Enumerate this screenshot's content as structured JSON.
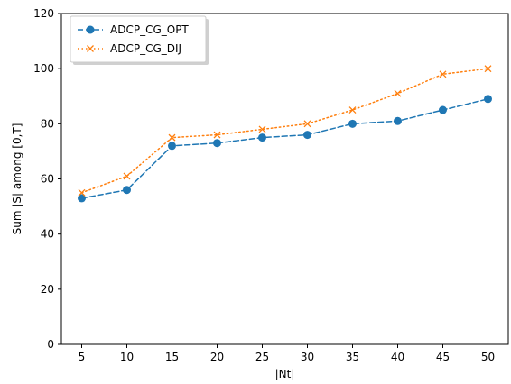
{
  "chart_data": {
    "type": "line",
    "xlabel": "|Nt|",
    "ylabel": "Sum |S| among [0,T]",
    "x": [
      5,
      10,
      15,
      20,
      25,
      30,
      35,
      40,
      45,
      50
    ],
    "xticks": [
      5,
      10,
      15,
      20,
      25,
      30,
      35,
      40,
      45,
      50
    ],
    "yticks": [
      0,
      20,
      40,
      60,
      80,
      100,
      120
    ],
    "xlim": [
      2.75,
      52.25
    ],
    "ylim": [
      0,
      120
    ],
    "grid": false,
    "legend_position": "top-left",
    "series": [
      {
        "name": "ADCP_CG_OPT",
        "values": [
          53,
          56,
          72,
          73,
          75,
          76,
          80,
          81,
          85,
          89
        ],
        "color": "#1f77b4",
        "line_style": "dashed",
        "marker": "circle"
      },
      {
        "name": "ADCP_CG_DIJ",
        "values": [
          55,
          61,
          75,
          76,
          78,
          80,
          85,
          91,
          98,
          100
        ],
        "color": "#ff7f0e",
        "line_style": "dotted",
        "marker": "x"
      }
    ]
  }
}
